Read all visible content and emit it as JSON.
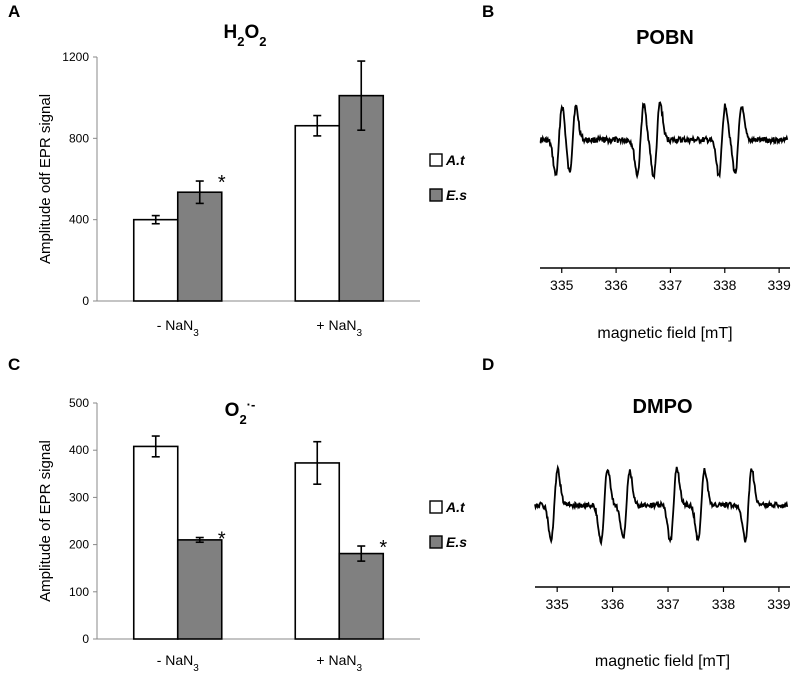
{
  "chart_data": [
    {
      "panel": "A",
      "type": "bar",
      "title_main": "H",
      "title_sub1": "2",
      "title_mid": "O",
      "title_sub2": "2",
      "ylabel": "Amplitude odf EPR signal",
      "ylim": [
        0,
        1200
      ],
      "yticks": [
        0,
        400,
        800,
        1200
      ],
      "categories": [
        {
          "prefix": "- NaN",
          "sub": "3"
        },
        {
          "prefix": "+ NaN",
          "sub": "3"
        }
      ],
      "series": [
        {
          "name": "A.t",
          "color": "#ffffff",
          "values": [
            400,
            862
          ],
          "errors": [
            20,
            50
          ]
        },
        {
          "name": "E.s",
          "color": "#808080",
          "values": [
            535,
            1010
          ],
          "errors": [
            55,
            170
          ]
        }
      ],
      "significance": [
        {
          "series": 1,
          "category": 0,
          "label": "*"
        }
      ]
    },
    {
      "panel": "C",
      "type": "bar",
      "title_main": "O",
      "title_sub1": "2",
      "title_sup": "·-",
      "ylabel": "Amplitude of EPR signal",
      "ylim": [
        0,
        500
      ],
      "yticks": [
        0,
        100,
        200,
        300,
        400,
        500
      ],
      "categories": [
        {
          "prefix": "- NaN",
          "sub": "3"
        },
        {
          "prefix": "+ NaN",
          "sub": "3"
        }
      ],
      "series": [
        {
          "name": "A.t",
          "color": "#ffffff",
          "values": [
            408,
            373
          ],
          "errors": [
            22,
            45
          ]
        },
        {
          "name": "E.s",
          "color": "#808080",
          "values": [
            210,
            181
          ],
          "errors": [
            5,
            16
          ]
        }
      ],
      "significance": [
        {
          "series": 1,
          "category": 0,
          "label": "*"
        },
        {
          "series": 1,
          "category": 1,
          "label": "*"
        }
      ]
    },
    {
      "panel": "B",
      "type": "line",
      "title": "POBN",
      "xlabel": "magnetic field [mT]",
      "xlim": [
        334.6,
        339.2
      ],
      "xticks": [
        335,
        336,
        337,
        338,
        339
      ],
      "lines": [
        {
          "center": 334.95,
          "amp": 1.0
        },
        {
          "center": 335.2,
          "amp": 0.95
        },
        {
          "center": 336.45,
          "amp": 1.0
        },
        {
          "center": 336.75,
          "amp": 1.05
        },
        {
          "center": 337.95,
          "amp": 1.0
        },
        {
          "center": 338.25,
          "amp": 0.95
        }
      ],
      "baseline_noise": 0.08
    },
    {
      "panel": "D",
      "type": "line",
      "title": "DMPO",
      "xlabel": "magnetic field [mT]",
      "xlim": [
        334.6,
        339.2
      ],
      "xticks": [
        335,
        336,
        337,
        338,
        339
      ],
      "lines": [
        {
          "center": 334.95,
          "amp": 1.0
        },
        {
          "center": 335.85,
          "amp": 1.05
        },
        {
          "center": 336.25,
          "amp": 0.95
        },
        {
          "center": 337.1,
          "amp": 1.05
        },
        {
          "center": 337.6,
          "amp": 1.0
        },
        {
          "center": 338.45,
          "amp": 1.0
        }
      ],
      "baseline_noise": 0.07
    }
  ],
  "panels": {
    "A": "A",
    "B": "B",
    "C": "C",
    "D": "D"
  },
  "legend": {
    "at": "A.t",
    "es": "E.s"
  }
}
